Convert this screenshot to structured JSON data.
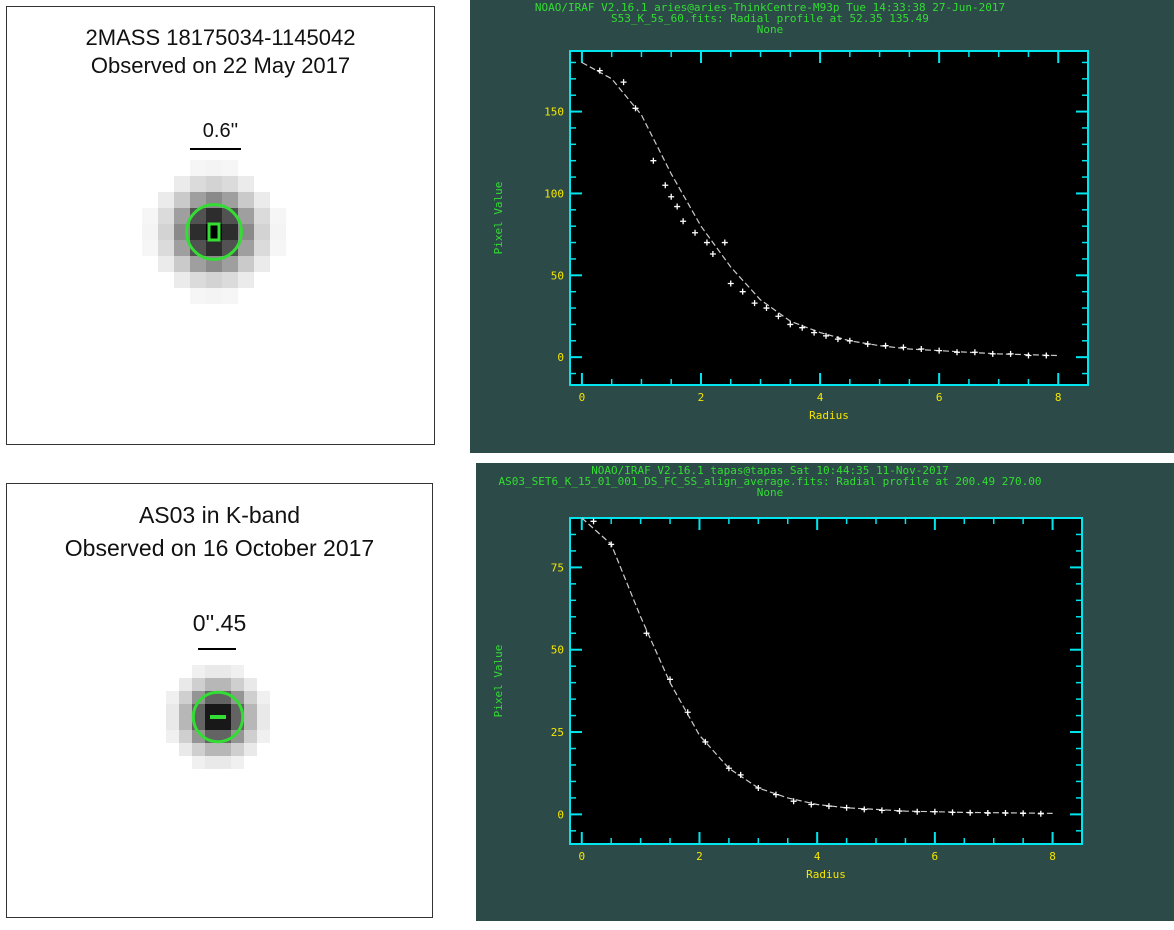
{
  "star_panels": [
    {
      "title_line1": "2MASS 18175034-1145042",
      "title_line2": "Observed on 22 May 2017",
      "scale_label": "0.6''"
    },
    {
      "title_line1": "AS03 in K-band",
      "title_line2": "Observed on 16 October 2017",
      "scale_label": "0''.45"
    }
  ],
  "colors": {
    "plot_bg": "#2c4a47",
    "axes": "#00e5ee",
    "ticks": "#f5e600",
    "header": "#33dd33",
    "points": "#ffffff",
    "ring": "#33dd33"
  },
  "chart_data": [
    {
      "type": "scatter",
      "header_lines": [
        "NOAO/IRAF V2.16.1 aries@aries-ThinkCentre-M93p Tue 14:33:38 27-Jun-2017",
        "S53_K_5s_60.fits: Radial profile at 52.35 135.49",
        "None"
      ],
      "xlabel": "Radius",
      "ylabel": "Pixel Value",
      "xlim": [
        -0.2,
        8.5
      ],
      "ylim": [
        -17,
        187
      ],
      "xticks": [
        0,
        2,
        4,
        6,
        8
      ],
      "yticks": [
        0,
        50,
        100,
        150
      ],
      "grid": false,
      "fit_line": {
        "x": [
          0,
          0.5,
          1,
          1.5,
          2,
          2.5,
          3,
          3.5,
          4,
          4.5,
          5,
          5.5,
          6,
          6.5,
          7,
          7.5,
          8
        ],
        "y": [
          180,
          170,
          148,
          112,
          80,
          55,
          35,
          22,
          15,
          10,
          7,
          5,
          4,
          3,
          2,
          1.5,
          1
        ]
      },
      "points": {
        "x": [
          0.3,
          0.7,
          0.9,
          1.2,
          1.4,
          1.5,
          1.6,
          1.7,
          1.9,
          2.1,
          2.2,
          2.4,
          2.5,
          2.7,
          2.9,
          3.1,
          3.3,
          3.5,
          3.7,
          3.9,
          4.1,
          4.3,
          4.5,
          4.8,
          5.1,
          5.4,
          5.7,
          6.0,
          6.3,
          6.6,
          6.9,
          7.2,
          7.5,
          7.8
        ],
        "y": [
          175,
          168,
          152,
          120,
          105,
          98,
          92,
          83,
          76,
          70,
          63,
          70,
          45,
          40,
          33,
          30,
          25,
          20,
          18,
          15,
          13,
          11,
          10,
          8,
          7,
          6,
          5,
          4,
          3,
          3,
          2,
          2,
          1,
          1
        ]
      }
    },
    {
      "type": "scatter",
      "header_lines": [
        "NOAO/IRAF V2.16.1 tapas@tapas Sat 10:44:35 11-Nov-2017",
        "AS03_SET6_K_15_01_001_DS_FC_SS_align_average.fits: Radial profile at 200.49 270.00",
        "None"
      ],
      "xlabel": "Radius",
      "ylabel": "Pixel Value",
      "xlim": [
        -0.2,
        8.5
      ],
      "ylim": [
        -9,
        90
      ],
      "xticks": [
        0,
        2,
        4,
        6,
        8
      ],
      "yticks": [
        0,
        25,
        50,
        75
      ],
      "grid": false,
      "fit_line": {
        "x": [
          0,
          0.5,
          1,
          1.5,
          2,
          2.5,
          3,
          3.5,
          4,
          4.5,
          5,
          5.5,
          6,
          6.5,
          7,
          7.5,
          8
        ],
        "y": [
          90,
          82,
          60,
          40,
          24,
          14,
          8,
          5,
          3,
          2,
          1.5,
          1,
          0.8,
          0.6,
          0.5,
          0.4,
          0.3
        ]
      },
      "points": {
        "x": [
          0.2,
          0.5,
          1.1,
          1.5,
          1.8,
          2.1,
          2.5,
          2.7,
          3.0,
          3.3,
          3.6,
          3.9,
          4.2,
          4.5,
          4.8,
          5.1,
          5.4,
          5.7,
          6.0,
          6.3,
          6.6,
          6.9,
          7.2,
          7.5,
          7.8
        ],
        "y": [
          89,
          82,
          55,
          41,
          31,
          22,
          14,
          12,
          8,
          6,
          4,
          3,
          2.5,
          2,
          1.5,
          1.2,
          1,
          0.8,
          0.8,
          0.6,
          0.5,
          0.4,
          0.4,
          0.3,
          0.2
        ]
      }
    }
  ]
}
